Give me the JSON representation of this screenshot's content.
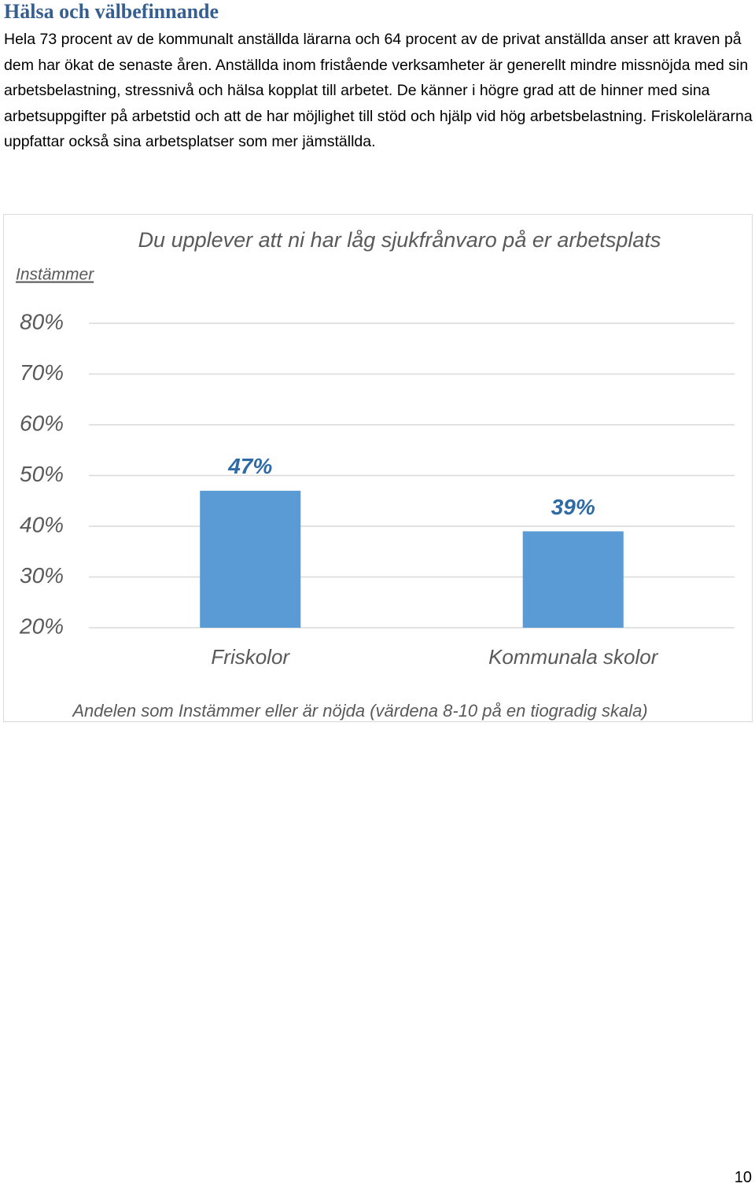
{
  "heading": "Hälsa och välbefinnande",
  "paragraph": "Hela 73 procent av de kommunalt anställda lärarna och 64 procent av de privat anställda anser att kraven på dem har ökat de senaste åren. Anställda inom fristående verksamheter är generellt mindre missnöjda med sin arbetsbelastning, stressnivå och hälsa kopplat till arbetet. De känner i högre grad att de hinner med sina arbetsuppgifter på arbetstid och att de har möjlighet till stöd och hjälp vid hög arbetsbelastning. Friskolelärarna uppfattar också sina arbetsplatser som mer jämställda.",
  "chart_data": {
    "type": "bar",
    "title": "Du upplever att ni har låg sjukfrånvaro på er arbetsplats",
    "ylabel": "Instämmer",
    "xlabel": "Andelen som Instämmer eller är nöjda (värdena 8-10 på en tiogradig skala)",
    "categories": [
      "Friskolor",
      "Kommunala skolor"
    ],
    "values": [
      47,
      39
    ],
    "value_labels": [
      "47%",
      "39%"
    ],
    "color": "#5b9bd5",
    "ylim": [
      20,
      80
    ],
    "yticks": [
      {
        "value": 20,
        "label": "20%"
      },
      {
        "value": 30,
        "label": "30%"
      },
      {
        "value": 40,
        "label": "40%"
      },
      {
        "value": 50,
        "label": "50%"
      },
      {
        "value": 60,
        "label": "60%"
      },
      {
        "value": 70,
        "label": "70%"
      },
      {
        "value": 80,
        "label": "80%"
      }
    ],
    "grid": true
  },
  "page_number": "10"
}
